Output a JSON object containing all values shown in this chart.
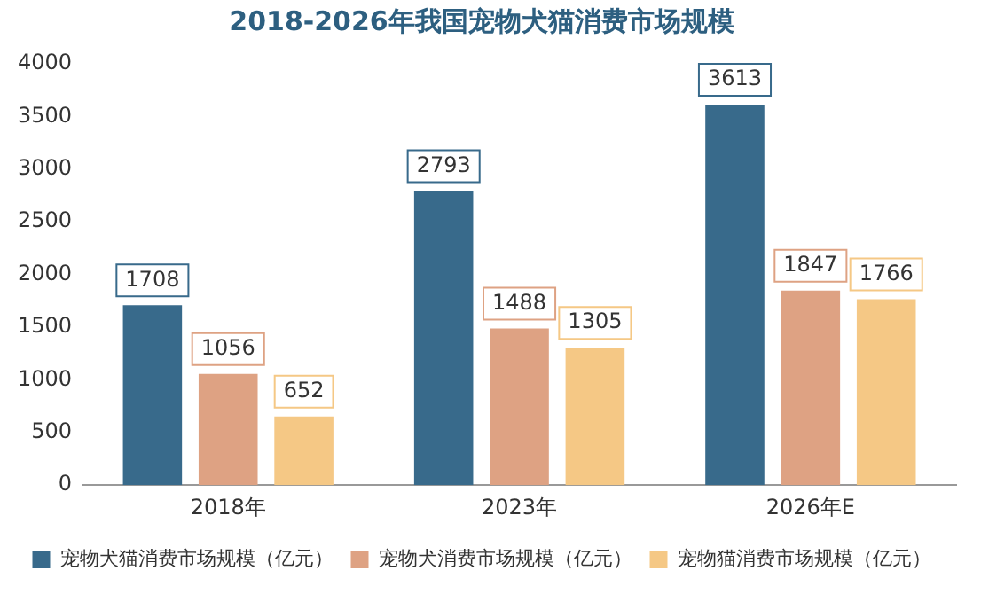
{
  "chart_data": {
    "type": "bar",
    "title": "2018-2026年我国宠物犬猫消费市场规模",
    "categories": [
      "2018年",
      "2023年",
      "2026年E"
    ],
    "series": [
      {
        "name": "宠物犬猫消费市场规模（亿元）",
        "color": "#386a8b",
        "values": [
          1708,
          2793,
          3613
        ]
      },
      {
        "name": "宠物犬消费市场规模（亿元）",
        "color": "#dea283",
        "values": [
          1056,
          1488,
          1847
        ]
      },
      {
        "name": "宠物猫消费市场规模（亿元）",
        "color": "#f5c885",
        "values": [
          652,
          1305,
          1766
        ]
      }
    ],
    "ylim": [
      0,
      4000
    ],
    "yticks": [
      0,
      500,
      1000,
      1500,
      2000,
      2500,
      3000,
      3500,
      4000
    ],
    "grid": false,
    "legend": "bottom",
    "data_labels": true
  }
}
